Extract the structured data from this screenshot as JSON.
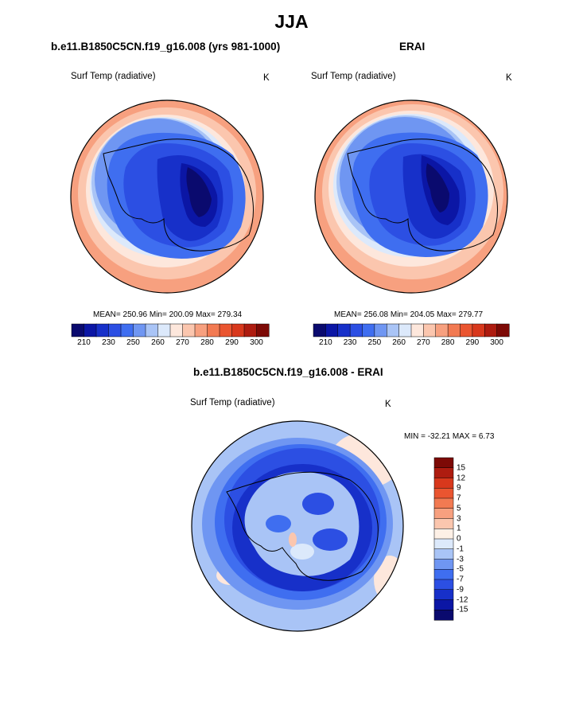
{
  "title": "JJA",
  "panels": [
    {
      "title": "b.e11.B1850C5CN.f19_g16.008 (yrs 981-1000)",
      "variable": "Surf Temp (radiative)",
      "units": "K",
      "stats": "MEAN= 250.96  Min= 200.09  Max= 279.34"
    },
    {
      "title": "ERAI",
      "variable": "Surf Temp (radiative)",
      "units": "K",
      "stats": "MEAN= 256.08  Min= 204.05  Max= 279.77"
    },
    {
      "title": "b.e11.B1850C5CN.f19_g16.008 - ERAI",
      "variable": "Surf Temp (radiative)",
      "units": "K",
      "stats": "MIN = -32.21 MAX =   6.73"
    }
  ],
  "chart_data": [
    {
      "type": "heatmap",
      "projection": "south-polar-stereographic",
      "title": "b.e11.B1850C5CN.f19_g16.008 (yrs 981-1000)",
      "variable": "Surf Temp (radiative)",
      "units": "K",
      "mean": 250.96,
      "min": 200.09,
      "max": 279.34,
      "colorbar_levels": [
        210,
        220,
        230,
        240,
        250,
        255,
        260,
        265,
        270,
        275,
        280,
        285,
        290,
        295,
        300
      ],
      "colorbar_tick_labels": [
        "210",
        "230",
        "250",
        "260",
        "270",
        "280",
        "290",
        "300"
      ],
      "colors": [
        "#0a0a6e",
        "#0b16a5",
        "#1730c9",
        "#2c4fe3",
        "#3f6ef0",
        "#6f96f2",
        "#a9c4f6",
        "#dce9fb",
        "#fde7dc",
        "#fbc6ae",
        "#f7a07f",
        "#f27a52",
        "#ea5530",
        "#d8381c",
        "#ae1c10",
        "#7d0a06"
      ]
    },
    {
      "type": "heatmap",
      "projection": "south-polar-stereographic",
      "title": "ERAI",
      "variable": "Surf Temp (radiative)",
      "units": "K",
      "mean": 256.08,
      "min": 204.05,
      "max": 279.77,
      "colorbar_levels": [
        210,
        220,
        230,
        240,
        250,
        255,
        260,
        265,
        270,
        275,
        280,
        285,
        290,
        295,
        300
      ],
      "colorbar_tick_labels": [
        "210",
        "230",
        "250",
        "260",
        "270",
        "280",
        "290",
        "300"
      ],
      "colors": [
        "#0a0a6e",
        "#0b16a5",
        "#1730c9",
        "#2c4fe3",
        "#3f6ef0",
        "#6f96f2",
        "#a9c4f6",
        "#dce9fb",
        "#fde7dc",
        "#fbc6ae",
        "#f7a07f",
        "#f27a52",
        "#ea5530",
        "#d8381c",
        "#ae1c10",
        "#7d0a06"
      ]
    },
    {
      "type": "heatmap",
      "projection": "south-polar-stereographic",
      "title": "b.e11.B1850C5CN.f19_g16.008 - ERAI",
      "variable": "Surf Temp (radiative)",
      "units": "K",
      "min": -32.21,
      "max": 6.73,
      "colorbar_tick_labels": [
        "15",
        "12",
        "9",
        "7",
        "5",
        "3",
        "1",
        "0",
        "-1",
        "-3",
        "-5",
        "-7",
        "-9",
        "-12",
        "-15"
      ],
      "colors": [
        "#7d0a06",
        "#ae1c10",
        "#d8381c",
        "#ea5530",
        "#f27a52",
        "#f7a07f",
        "#fbc6ae",
        "#fdf0e6",
        "#dce9fb",
        "#a9c4f6",
        "#6f96f2",
        "#3f6ef0",
        "#2c4fe3",
        "#1730c9",
        "#0b16a5",
        "#0a0a6e"
      ]
    }
  ]
}
